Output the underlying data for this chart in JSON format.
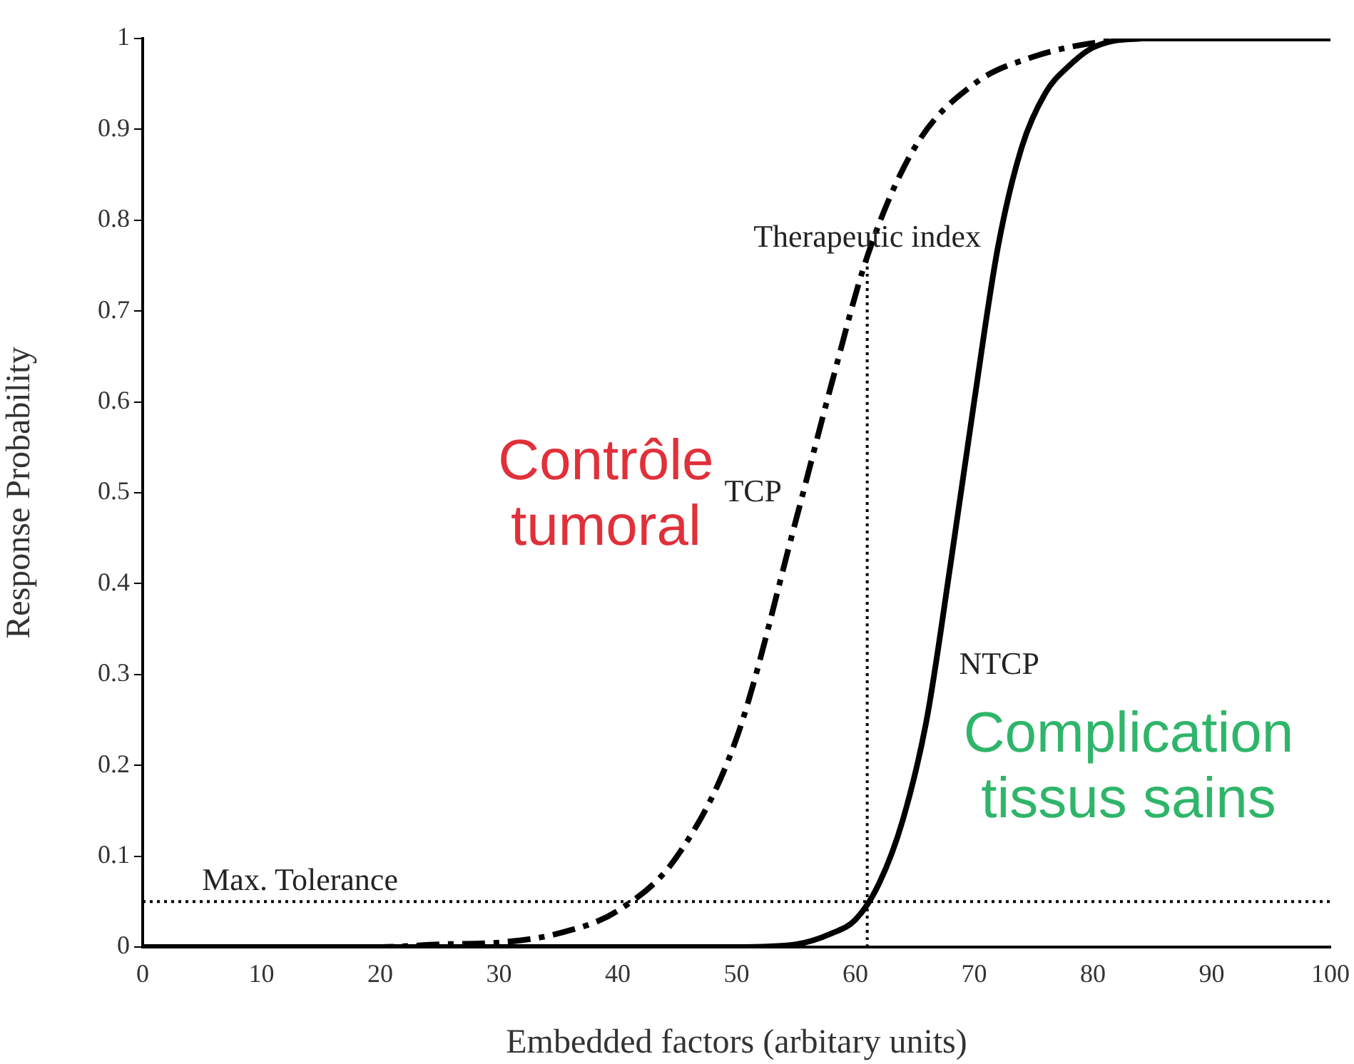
{
  "chart_data": {
    "type": "line",
    "xlabel": "Embedded factors (arbitary units)",
    "ylabel": "Response Probability",
    "xlim": [
      0,
      100
    ],
    "ylim": [
      0,
      1
    ],
    "xticks": [
      0,
      10,
      20,
      30,
      40,
      50,
      60,
      70,
      80,
      90,
      100
    ],
    "yticks": [
      0,
      {
        "value": 0.1,
        "label": "0.1"
      },
      {
        "value": 0.2,
        "label": "0.2"
      },
      {
        "value": 0.3,
        "label": "0.3"
      },
      {
        "value": 0.4,
        "label": "0.4"
      },
      {
        "value": 0.5,
        "label": "0.5"
      },
      {
        "value": 0.6,
        "label": "0.6"
      },
      {
        "value": 0.7,
        "label": "0.7"
      },
      {
        "value": 0.8,
        "label": "0.8"
      },
      {
        "value": 0.9,
        "label": "0.9"
      },
      1
    ],
    "grid": false,
    "legend": false,
    "marker": "none",
    "series": [
      {
        "name": "TCP",
        "color": "#000000",
        "line_style": "dashed",
        "x": [
          0,
          20,
          25,
          30,
          35,
          40,
          45,
          50,
          55,
          58,
          61,
          65,
          70,
          75,
          80,
          85,
          100
        ],
        "values": [
          0,
          0,
          0.003,
          0.005,
          0.015,
          0.04,
          0.1,
          0.23,
          0.47,
          0.62,
          0.76,
          0.88,
          0.95,
          0.98,
          0.995,
          1,
          1
        ]
      },
      {
        "name": "NTCP",
        "color": "#000000",
        "line_style": "solid",
        "x": [
          0,
          50,
          55,
          58,
          60,
          62,
          64,
          66,
          68,
          70,
          72,
          74,
          76,
          78,
          80,
          84,
          100
        ],
        "values": [
          0,
          0,
          0.003,
          0.015,
          0.03,
          0.07,
          0.14,
          0.25,
          0.42,
          0.6,
          0.77,
          0.88,
          0.94,
          0.97,
          0.99,
          1,
          1
        ]
      },
      {
        "color": "#000000",
        "line_style": "dotted",
        "x": [
          61,
          61
        ],
        "values": [
          0,
          0.76
        ]
      }
    ],
    "ref_lines": [
      {
        "axis": "y",
        "value": 0.05,
        "label": "Max. Tolerance",
        "line_style": "dotted",
        "color": "#000000"
      }
    ],
    "annotations": [
      {
        "text": "Therapeutic index",
        "x": 61,
        "y": 0.78
      },
      "Contrôle tumoral",
      "Complication tissus sains"
    ]
  }
}
